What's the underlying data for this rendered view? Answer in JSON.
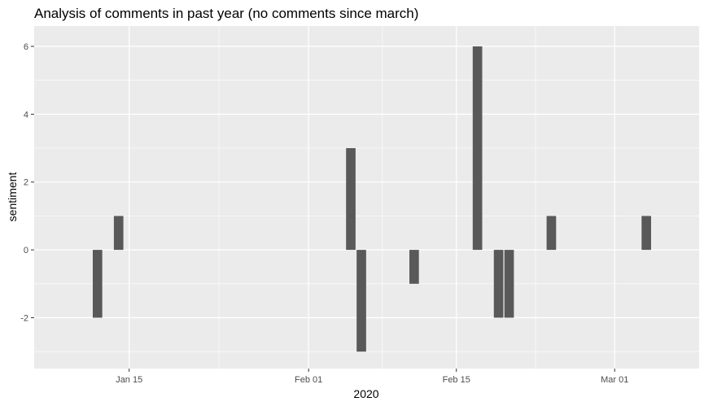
{
  "chart_data": {
    "type": "bar",
    "title": "Analysis of comments in past year (no comments since march)",
    "xlabel": "2020",
    "ylabel": "sentiment",
    "xlim": [
      "2020-01-06",
      "2020-03-09"
    ],
    "ylim": [
      -3.5,
      6.6
    ],
    "x_ticks": [
      {
        "date": "2020-01-15",
        "label": "Jan 15"
      },
      {
        "date": "2020-02-01",
        "label": "Feb 01"
      },
      {
        "date": "2020-02-15",
        "label": "Feb 15"
      },
      {
        "date": "2020-03-01",
        "label": "Mar 01"
      }
    ],
    "y_ticks": [
      {
        "value": -2,
        "label": "-2"
      },
      {
        "value": 0,
        "label": "0"
      },
      {
        "value": 2,
        "label": "2"
      },
      {
        "value": 4,
        "label": "4"
      },
      {
        "value": 6,
        "label": "6"
      }
    ],
    "grid": true,
    "bar_color": "#595959",
    "panel_color": "#ebebeb",
    "grid_color": "#ffffff",
    "points": [
      {
        "date": "2020-01-12",
        "value": -2
      },
      {
        "date": "2020-01-14",
        "value": 1
      },
      {
        "date": "2020-02-05",
        "value": 3
      },
      {
        "date": "2020-02-06",
        "value": -3
      },
      {
        "date": "2020-02-11",
        "value": -1
      },
      {
        "date": "2020-02-17",
        "value": 6
      },
      {
        "date": "2020-02-19",
        "value": -2
      },
      {
        "date": "2020-02-20",
        "value": -2
      },
      {
        "date": "2020-02-24",
        "value": 1
      },
      {
        "date": "2020-03-04",
        "value": 1
      }
    ]
  }
}
